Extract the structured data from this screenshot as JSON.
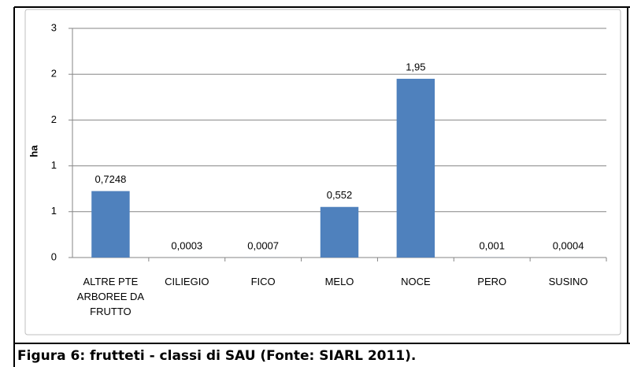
{
  "chart_data": {
    "type": "bar",
    "title": "Figura 6: frutteti - classi di SAU (Fonte: SIARL 2011).",
    "y_label": "ha",
    "categories": [
      "ALTRE PTE ARBOREE DA FRUTTO",
      "CILIEGIO",
      "FICO",
      "MELO",
      "NOCE",
      "PERO",
      "SUSINO"
    ],
    "values": [
      0.7248,
      0.0003,
      0.0007,
      0.552,
      1.95,
      0.001,
      0.0004
    ],
    "value_labels": [
      "0,7248",
      "0,0003",
      "0,0007",
      "0,552",
      "1,95",
      "0,001",
      "0,0004"
    ],
    "color": "#4f81bd",
    "ylim": [
      0,
      2.5
    ],
    "yticks": [
      0,
      {
        "value": 0.5,
        "label": "1"
      },
      1,
      {
        "value": 1.5,
        "label": "2"
      },
      2,
      {
        "value": 2.5,
        "label": "3"
      }
    ],
    "grid": true
  }
}
